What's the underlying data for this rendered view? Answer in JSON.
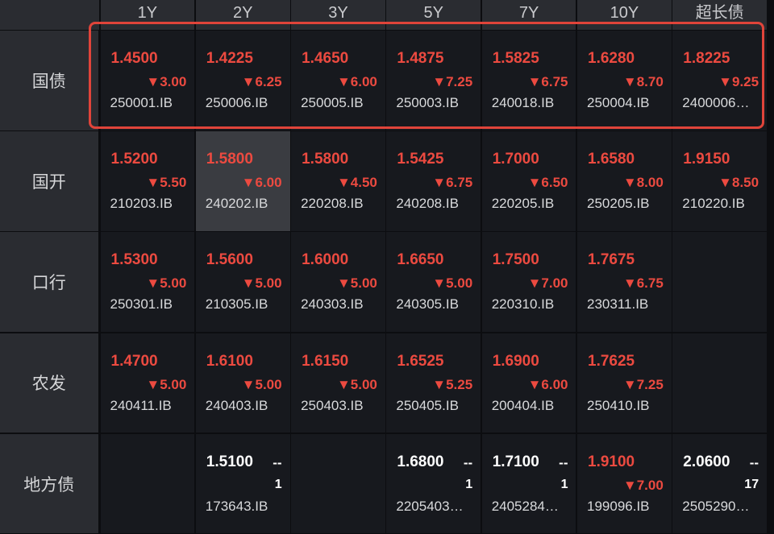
{
  "table": {
    "columns": [
      "1Y",
      "2Y",
      "3Y",
      "5Y",
      "7Y",
      "10Y",
      "超长债"
    ],
    "rows": [
      {
        "label": "国债",
        "cells": [
          {
            "yield": "1.4500",
            "change": "▼3.00",
            "code": "250001.IB",
            "color": "#ec4a40"
          },
          {
            "yield": "1.4225",
            "change": "▼6.25",
            "code": "250006.IB",
            "color": "#ec4a40"
          },
          {
            "yield": "1.4650",
            "change": "▼6.00",
            "code": "250005.IB",
            "color": "#ec4a40"
          },
          {
            "yield": "1.4875",
            "change": "▼7.25",
            "code": "250003.IB",
            "color": "#ec4a40"
          },
          {
            "yield": "1.5825",
            "change": "▼6.75",
            "code": "240018.IB",
            "color": "#ec4a40"
          },
          {
            "yield": "1.6280",
            "change": "▼8.70",
            "code": "250004.IB",
            "color": "#ec4a40"
          },
          {
            "yield": "1.8225",
            "change": "▼9.25",
            "code": "2400006…",
            "color": "#ec4a40"
          }
        ]
      },
      {
        "label": "国开",
        "cells": [
          {
            "yield": "1.5200",
            "change": "▼5.50",
            "code": "210203.IB",
            "color": "#ec4a40"
          },
          {
            "yield": "1.5800",
            "change": "▼6.00",
            "code": "240202.IB",
            "color": "#ec4a40"
          },
          {
            "yield": "1.5800",
            "change": "▼4.50",
            "code": "220208.IB",
            "color": "#ec4a40"
          },
          {
            "yield": "1.5425",
            "change": "▼6.75",
            "code": "240208.IB",
            "color": "#ec4a40"
          },
          {
            "yield": "1.7000",
            "change": "▼6.50",
            "code": "220205.IB",
            "color": "#ec4a40"
          },
          {
            "yield": "1.6580",
            "change": "▼8.00",
            "code": "250205.IB",
            "color": "#ec4a40"
          },
          {
            "yield": "1.9150",
            "change": "▼8.50",
            "code": "210220.IB",
            "color": "#ec4a40"
          }
        ]
      },
      {
        "label": "口行",
        "cells": [
          {
            "yield": "1.5300",
            "change": "▼5.00",
            "code": "250301.IB",
            "color": "#ec4a40"
          },
          {
            "yield": "1.5600",
            "change": "▼5.00",
            "code": "210305.IB",
            "color": "#ec4a40"
          },
          {
            "yield": "1.6000",
            "change": "▼5.00",
            "code": "240303.IB",
            "color": "#ec4a40"
          },
          {
            "yield": "1.6650",
            "change": "▼5.00",
            "code": "240305.IB",
            "color": "#ec4a40"
          },
          {
            "yield": "1.7500",
            "change": "▼7.00",
            "code": "220310.IB",
            "color": "#ec4a40"
          },
          {
            "yield": "1.7675",
            "change": "▼6.75",
            "code": "230311.IB",
            "color": "#ec4a40"
          },
          null
        ]
      },
      {
        "label": "农发",
        "cells": [
          {
            "yield": "1.4700",
            "change": "▼5.00",
            "code": "240411.IB",
            "color": "#ec4a40"
          },
          {
            "yield": "1.6100",
            "change": "▼5.00",
            "code": "240403.IB",
            "color": "#ec4a40"
          },
          {
            "yield": "1.6150",
            "change": "▼5.00",
            "code": "250403.IB",
            "color": "#ec4a40"
          },
          {
            "yield": "1.6525",
            "change": "▼5.25",
            "code": "250405.IB",
            "color": "#ec4a40"
          },
          {
            "yield": "1.6900",
            "change": "▼6.00",
            "code": "200404.IB",
            "color": "#ec4a40"
          },
          {
            "yield": "1.7625",
            "change": "▼7.25",
            "code": "250410.IB",
            "color": "#ec4a40"
          },
          null
        ]
      },
      {
        "label": "地方债",
        "cells": [
          null,
          {
            "yield": "1.5100",
            "change": "--",
            "sub": "1",
            "code": "173643.IB",
            "color": "#ffffff"
          },
          null,
          {
            "yield": "1.6800",
            "change": "--",
            "sub": "1",
            "code": "2205403…",
            "color": "#ffffff"
          },
          {
            "yield": "1.7100",
            "change": "--",
            "sub": "1",
            "code": "2405284…",
            "color": "#ffffff"
          },
          {
            "yield": "1.9100",
            "change": "▼7.00",
            "code": "199096.IB",
            "color": "#ec4a40"
          },
          {
            "yield": "2.0600",
            "change": "--",
            "sub": "17",
            "code": "2505290…",
            "color": "#ffffff"
          }
        ]
      }
    ]
  }
}
